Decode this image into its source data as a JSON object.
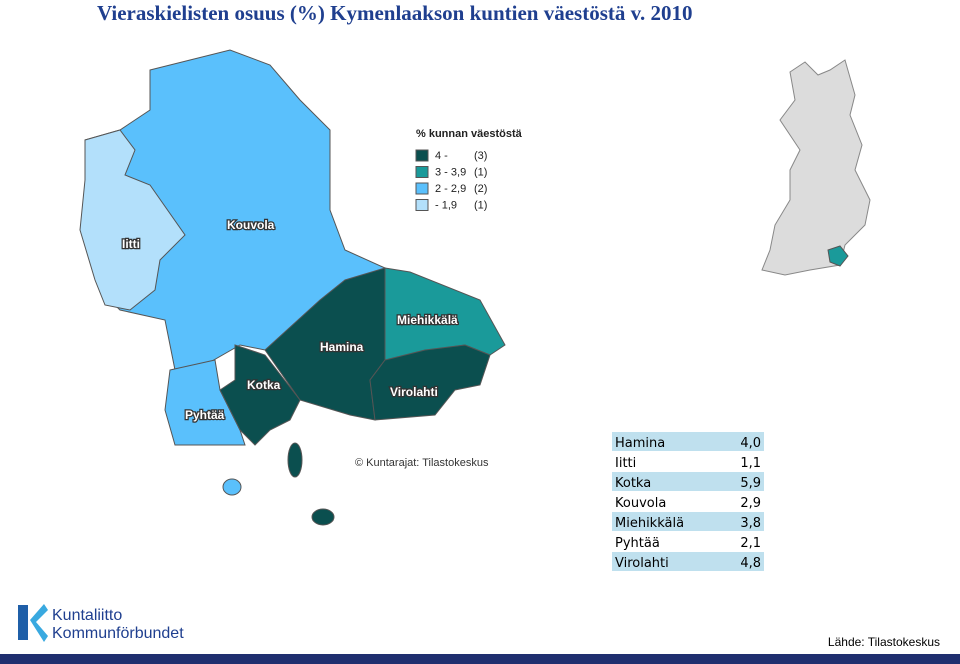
{
  "title": "Vieraskielisten osuus (%) Kymenlaakson kuntien väestöstä v. 2010",
  "legend": {
    "title": "% kunnan väestöstä",
    "items": [
      {
        "range": "4 -",
        "count": "(3)",
        "color": "#0b4f4f"
      },
      {
        "range": "3 - 3,9",
        "count": "(1)",
        "color": "#1a9a9a"
      },
      {
        "range": "2 - 2,9",
        "count": "(2)",
        "color": "#5ac0fc"
      },
      {
        "range": "- 1,9",
        "count": "(1)",
        "color": "#b3e0fb"
      }
    ]
  },
  "regions": [
    {
      "label": "Iitti"
    },
    {
      "label": "Kouvola"
    },
    {
      "label": "Pyhtää"
    },
    {
      "label": "Kotka"
    },
    {
      "label": "Hamina"
    },
    {
      "label": "Miehikkälä"
    },
    {
      "label": "Virolahti"
    }
  ],
  "credit": "© Kuntarajat: Tilastokeskus",
  "table": {
    "rows": [
      [
        "Hamina",
        "4,0"
      ],
      [
        "Iitti",
        "1,1"
      ],
      [
        "Kotka",
        "5,9"
      ],
      [
        "Kouvola",
        "2,9"
      ],
      [
        "Miehikkälä",
        "3,8"
      ],
      [
        "Pyhtää",
        "2,1"
      ],
      [
        "Virolahti",
        "4,8"
      ]
    ]
  },
  "logo": {
    "line1": "Kuntaliitto",
    "line2": "Kommunförbundet"
  },
  "source": "Lähde: Tilastokeskus"
}
